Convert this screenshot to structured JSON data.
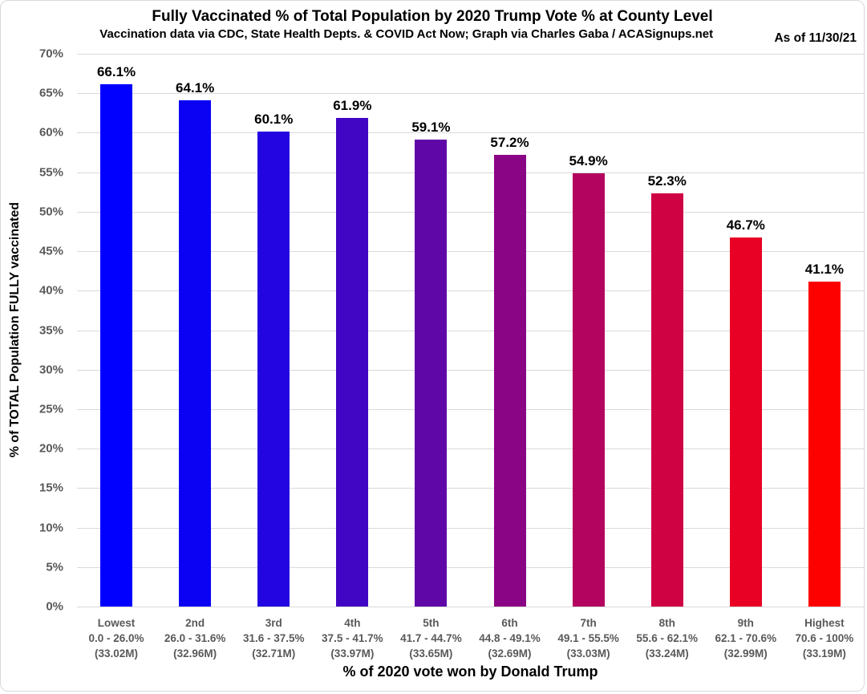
{
  "header": {
    "title": "Fully Vaccinated % of Total Population by 2020 Trump Vote % at County Level",
    "subtitle": "Vaccination data via CDC, State Health Depts. & COVID Act Now; Graph via Charles Gaba / ACASignups.net",
    "as_of": "As of 11/30/21"
  },
  "chart_data": {
    "type": "bar",
    "title": "Fully Vaccinated % of Total Population by 2020 Trump Vote % at County Level",
    "subtitle": "Vaccination data via CDC, State Health Depts. & COVID Act Now; Graph via Charles Gaba / ACASignups.net",
    "annotation": "As of 11/30/21",
    "xlabel": "% of 2020 vote won by Donald Trump",
    "ylabel": "% of TOTAL Population FULLY vaccinated",
    "ylim": [
      0,
      70
    ],
    "ytick_step": 5,
    "ytick_suffix": "%",
    "grid": true,
    "legend": "none",
    "categories": [
      {
        "name": "Lowest",
        "range": "0.0 - 26.0%",
        "population": "(33.02M)"
      },
      {
        "name": "2nd",
        "range": "26.0 - 31.6%",
        "population": "(32.96M)"
      },
      {
        "name": "3rd",
        "range": "31.6 - 37.5%",
        "population": "(32.71M)"
      },
      {
        "name": "4th",
        "range": "37.5 - 41.7%",
        "population": "(33.97M)"
      },
      {
        "name": "5th",
        "range": "41.7 - 44.7%",
        "population": "(33.65M)"
      },
      {
        "name": "6th",
        "range": "44.8 - 49.1%",
        "population": "(32.69M)"
      },
      {
        "name": "7th",
        "range": "49.1 - 55.5%",
        "population": "(33.03M)"
      },
      {
        "name": "8th",
        "range": "55.6 - 62.1%",
        "population": "(33.24M)"
      },
      {
        "name": "9th",
        "range": "62.1 - 70.6%",
        "population": "(32.99M)"
      },
      {
        "name": "Highest",
        "range": "70.6 - 100%",
        "population": "(33.19M)"
      }
    ],
    "values": [
      66.1,
      64.1,
      60.1,
      61.9,
      59.1,
      57.2,
      54.9,
      52.3,
      46.7,
      41.1
    ],
    "value_labels": [
      "66.1%",
      "64.1%",
      "60.1%",
      "61.9%",
      "59.1%",
      "57.2%",
      "54.9%",
      "52.3%",
      "46.7%",
      "41.1%"
    ],
    "bar_colors": [
      "#0100fe",
      "#0b02f4",
      "#2305e2",
      "#4106c4",
      "#6007a8",
      "#8a0585",
      "#b30460",
      "#cf0243",
      "#e90125",
      "#fd0100"
    ],
    "colors": {
      "gridline": "#d9d9d9",
      "axis_text": "#595959",
      "label_text": "#000000",
      "chart_border": "#d9d9d9",
      "background": "#ffffff"
    }
  }
}
